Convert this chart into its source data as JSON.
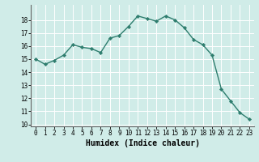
{
  "x": [
    0,
    1,
    2,
    3,
    4,
    5,
    6,
    7,
    8,
    9,
    10,
    11,
    12,
    13,
    14,
    15,
    16,
    17,
    18,
    19,
    20,
    21,
    22,
    23
  ],
  "y": [
    15.0,
    14.6,
    14.9,
    15.3,
    16.1,
    15.9,
    15.8,
    15.5,
    16.6,
    16.8,
    17.5,
    18.3,
    18.1,
    17.9,
    18.3,
    18.0,
    17.4,
    16.5,
    16.1,
    15.3,
    12.7,
    11.8,
    10.9,
    10.4
  ],
  "line_color": "#2e7d6e",
  "marker": "D",
  "marker_size": 2.2,
  "background_color": "#d0ece8",
  "grid_color": "#ffffff",
  "xlabel": "Humidex (Indice chaleur)",
  "ylabel": "",
  "ylim_min": 10,
  "ylim_max": 19,
  "xlim_min": -0.5,
  "xlim_max": 23.5,
  "yticks": [
    10,
    11,
    12,
    13,
    14,
    15,
    16,
    17,
    18
  ],
  "xticks": [
    0,
    1,
    2,
    3,
    4,
    5,
    6,
    7,
    8,
    9,
    10,
    11,
    12,
    13,
    14,
    15,
    16,
    17,
    18,
    19,
    20,
    21,
    22,
    23
  ],
  "tick_fontsize": 5.5,
  "xlabel_fontsize": 7.0,
  "line_width": 1.0,
  "fig_width": 3.2,
  "fig_height": 2.0,
  "dpi": 100
}
